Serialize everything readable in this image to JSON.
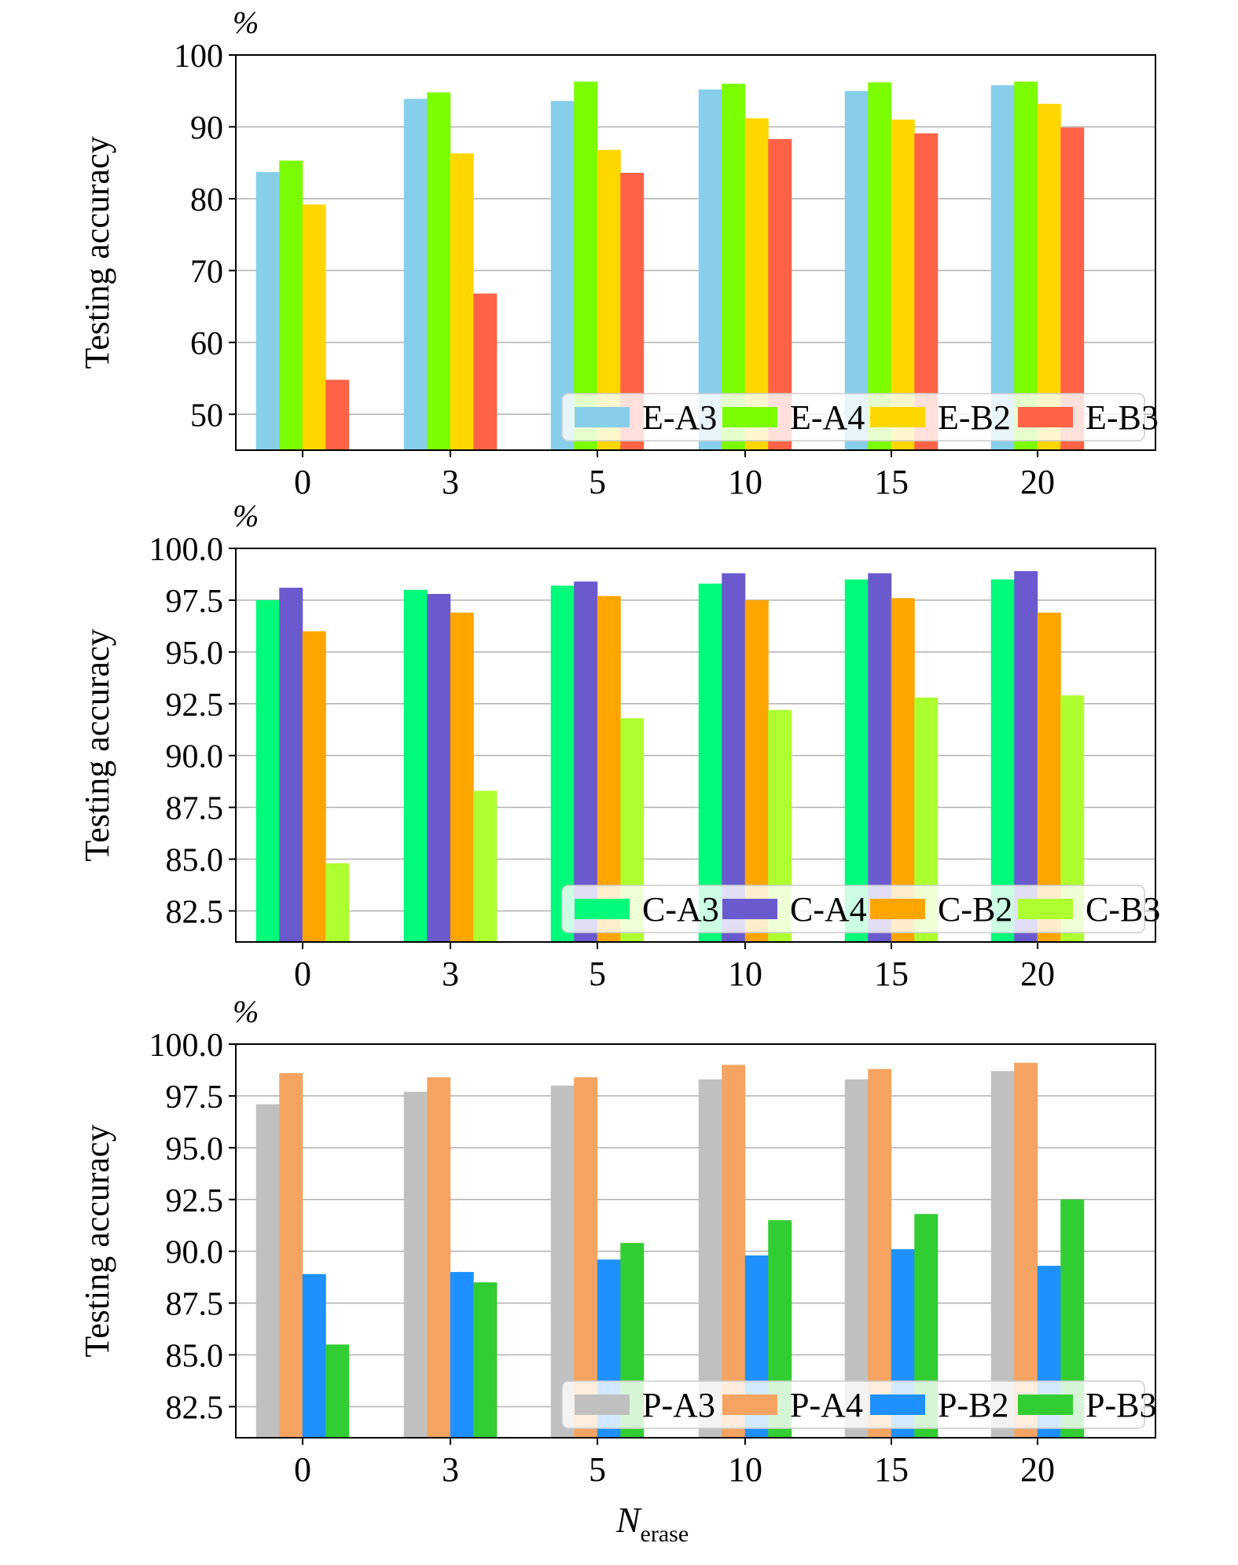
{
  "figure": {
    "xlabel_main": "N",
    "xlabel_sub": "erase"
  },
  "chart_data": [
    {
      "type": "bar",
      "unit_label": "%",
      "ylabel": "Testing accuracy",
      "categories": [
        "0",
        "3",
        "5",
        "10",
        "15",
        "20"
      ],
      "ylim": [
        45,
        100
      ],
      "yticks": [
        50,
        60,
        70,
        80,
        90,
        100
      ],
      "ytick_labels": [
        "50",
        "60",
        "70",
        "80",
        "90",
        "100"
      ],
      "grid": "horizontal",
      "legend_position": "bottom-right",
      "series": [
        {
          "name": "E-A3",
          "color": "#87ceeb",
          "values": [
            83.7,
            93.9,
            93.6,
            95.2,
            95.0,
            95.8
          ]
        },
        {
          "name": "E-A4",
          "color": "#7cfc00",
          "values": [
            85.3,
            94.8,
            96.3,
            96.0,
            96.2,
            96.3
          ]
        },
        {
          "name": "E-B2",
          "color": "#ffd700",
          "values": [
            79.2,
            86.3,
            86.8,
            91.2,
            91.0,
            93.2
          ]
        },
        {
          "name": "E-B3",
          "color": "#ff6347",
          "values": [
            54.8,
            66.8,
            83.6,
            88.3,
            89.1,
            89.9
          ]
        }
      ]
    },
    {
      "type": "bar",
      "unit_label": "%",
      "ylabel": "Testing accuracy",
      "categories": [
        "0",
        "3",
        "5",
        "10",
        "15",
        "20"
      ],
      "ylim": [
        81,
        100
      ],
      "yticks": [
        82.5,
        85.0,
        87.5,
        90.0,
        92.5,
        95.0,
        97.5,
        100.0
      ],
      "ytick_labels": [
        "82.5",
        "85.0",
        "87.5",
        "90.0",
        "92.5",
        "95.0",
        "97.5",
        "100.0"
      ],
      "grid": "horizontal",
      "legend_position": "bottom-right",
      "series": [
        {
          "name": "C-A3",
          "color": "#00fa7a",
          "values": [
            97.5,
            98.0,
            98.2,
            98.3,
            98.5,
            98.5
          ]
        },
        {
          "name": "C-A4",
          "color": "#6a5acd",
          "values": [
            98.1,
            97.8,
            98.4,
            98.8,
            98.8,
            98.9
          ]
        },
        {
          "name": "C-B2",
          "color": "#ffa500",
          "values": [
            96.0,
            96.9,
            97.7,
            97.5,
            97.6,
            96.9
          ]
        },
        {
          "name": "C-B3",
          "color": "#adff2f",
          "values": [
            84.8,
            88.3,
            91.8,
            92.2,
            92.8,
            92.9
          ]
        }
      ]
    },
    {
      "type": "bar",
      "unit_label": "%",
      "ylabel": "Testing accuracy",
      "categories": [
        "0",
        "3",
        "5",
        "10",
        "15",
        "20"
      ],
      "ylim": [
        81,
        100
      ],
      "yticks": [
        82.5,
        85.0,
        87.5,
        90.0,
        92.5,
        95.0,
        97.5,
        100.0
      ],
      "ytick_labels": [
        "82.5",
        "85.0",
        "87.5",
        "90.0",
        "92.5",
        "95.0",
        "97.5",
        "100.0"
      ],
      "grid": "horizontal",
      "legend_position": "bottom-right",
      "series": [
        {
          "name": "P-A3",
          "color": "#c0c0c0",
          "values": [
            97.1,
            97.7,
            98.0,
            98.3,
            98.3,
            98.7
          ]
        },
        {
          "name": "P-A4",
          "color": "#f4a460",
          "values": [
            98.6,
            98.4,
            98.4,
            99.0,
            98.8,
            99.1
          ]
        },
        {
          "name": "P-B2",
          "color": "#1e90ff",
          "values": [
            88.9,
            89.0,
            89.6,
            89.8,
            90.1,
            89.3
          ]
        },
        {
          "name": "P-B3",
          "color": "#32cd32",
          "values": [
            85.5,
            88.5,
            90.4,
            91.5,
            91.8,
            92.5
          ]
        }
      ]
    }
  ]
}
